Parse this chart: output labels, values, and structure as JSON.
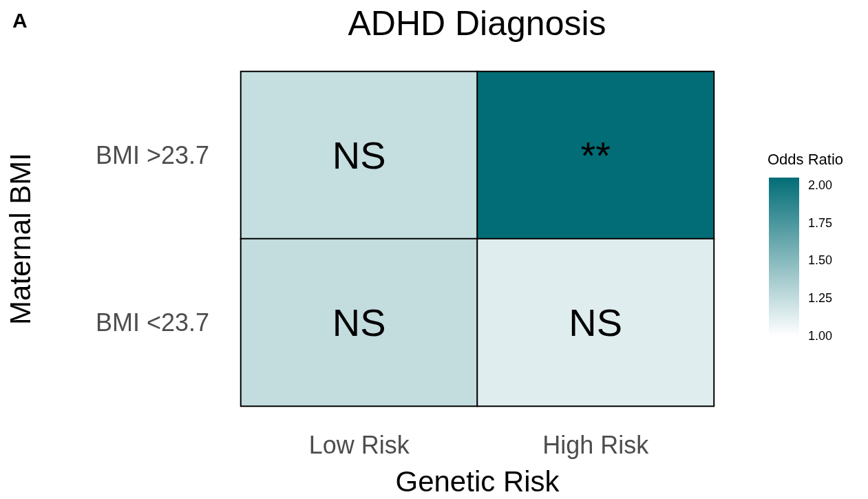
{
  "chart_data": {
    "type": "heatmap",
    "title": "ADHD Diagnosis",
    "xlabel": "Genetic Risk",
    "ylabel": "Maternal BMI",
    "clabel": "Odds Ratio",
    "annotations": [
      "A"
    ],
    "categories": [
      "Low Risk",
      "High Risk"
    ],
    "y_categories": [
      "BMI >23.7",
      "BMI <23.7"
    ],
    "cells": [
      [
        1.24,
        2.05
      ],
      [
        1.25,
        1.13
      ]
    ],
    "cell_labels": [
      [
        "NS",
        "**"
      ],
      [
        "NS",
        "NS"
      ]
    ],
    "clim": [
      1,
      2.05
    ],
    "cticks": [
      {
        "value": 1,
        "label": "1.00"
      },
      {
        "value": 1.25,
        "label": "1.25"
      },
      {
        "value": 1.5,
        "label": "1.50"
      },
      {
        "value": 1.75,
        "label": "1.75"
      },
      {
        "value": 2,
        "label": "2.00"
      }
    ]
  }
}
